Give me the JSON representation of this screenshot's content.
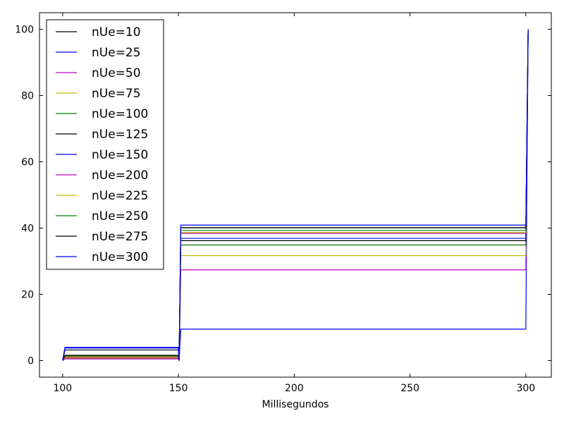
{
  "chart_data": {
    "type": "line",
    "xlabel": "Millisegundos",
    "ylabel": "",
    "xlim": [
      90,
      311
    ],
    "ylim": [
      -5,
      105
    ],
    "xticks": [
      100,
      150,
      200,
      250,
      300
    ],
    "yticks": [
      0,
      20,
      40,
      60,
      80,
      100
    ],
    "grid": false,
    "legend_position": "upper-left",
    "x": [
      100,
      101,
      150,
      150.3,
      151,
      300,
      301
    ],
    "series": [
      {
        "name": "nUe=10",
        "color": "#000000",
        "values": [
          0,
          0.8,
          0.8,
          0,
          40.1,
          40.1,
          100
        ]
      },
      {
        "name": "nUe=25",
        "color": "#0000ff",
        "values": [
          0,
          1.0,
          1.0,
          0,
          9.5,
          9.5,
          100
        ]
      },
      {
        "name": "nUe=50",
        "color": "#bf00bf",
        "values": [
          0,
          0.5,
          0.5,
          0,
          27.4,
          27.4,
          100
        ]
      },
      {
        "name": "nUe=75",
        "color": "#bfbf00",
        "values": [
          0,
          0.8,
          0.8,
          0,
          31.7,
          31.7,
          100
        ]
      },
      {
        "name": "nUe=100",
        "color": "#008000",
        "values": [
          0,
          1.5,
          1.5,
          0,
          34.9,
          34.9,
          100
        ]
      },
      {
        "name": "nUe=125",
        "color": "#000000",
        "values": [
          0,
          3.2,
          3.2,
          0,
          36.2,
          36.2,
          100
        ]
      },
      {
        "name": "nUe=150",
        "color": "#0000ff",
        "values": [
          0,
          3.8,
          3.8,
          0,
          36.9,
          36.9,
          100
        ]
      },
      {
        "name": "nUe=200",
        "color": "#bf00bf",
        "values": [
          0,
          1.0,
          1.0,
          0,
          38.4,
          38.4,
          100
        ]
      },
      {
        "name": "nUe=225",
        "color": "#bfbf00",
        "values": [
          0,
          1.2,
          1.2,
          0,
          38.7,
          38.7,
          100
        ]
      },
      {
        "name": "nUe=250",
        "color": "#008000",
        "values": [
          0,
          1.4,
          1.4,
          0,
          39.3,
          39.3,
          100
        ]
      },
      {
        "name": "nUe=275",
        "color": "#000000",
        "values": [
          0,
          1.6,
          1.6,
          0,
          40.1,
          40.1,
          100
        ]
      },
      {
        "name": "nUe=300",
        "color": "#0000ff",
        "values": [
          0,
          4.0,
          4.0,
          0,
          40.9,
          40.9,
          100
        ]
      }
    ]
  }
}
